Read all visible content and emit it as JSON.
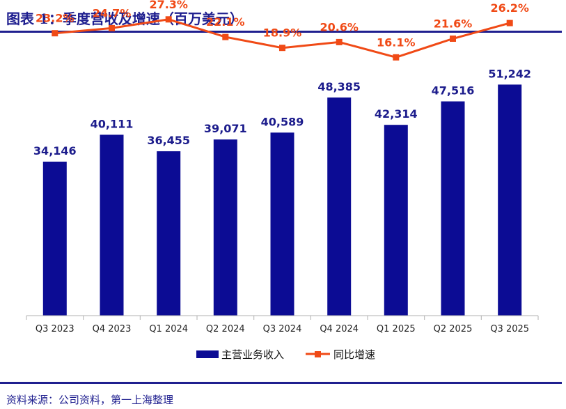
{
  "header": {
    "title": "图表 1：季度营收及增速（百万美元）"
  },
  "footer": {
    "source": "资料来源：公司资料，第一上海整理"
  },
  "colors": {
    "bar": "#0c0c94",
    "line": "#f04a16",
    "title": "#1f1f8f"
  },
  "chart_data": {
    "type": "bar",
    "categories": [
      "Q3 2023",
      "Q4 2023",
      "Q1 2024",
      "Q2 2024",
      "Q3 2024",
      "Q4 2024",
      "Q1 2025",
      "Q2 2025",
      "Q3 2025"
    ],
    "series": [
      {
        "name": "主营业务收入",
        "type": "bar",
        "values": [
          34146,
          40111,
          36455,
          39071,
          40589,
          48385,
          42314,
          47516,
          51242
        ],
        "labels": [
          "34,146",
          "40,111",
          "36,455",
          "39,071",
          "40,589",
          "48,385",
          "42,314",
          "47,516",
          "51,242"
        ]
      },
      {
        "name": "同比增速",
        "type": "line",
        "values": [
          23.2,
          24.7,
          27.3,
          22.1,
          18.9,
          20.6,
          16.1,
          21.6,
          26.2
        ],
        "labels": [
          "23.2%",
          "24.7%",
          "27.3%",
          "22.1%",
          "18.9%",
          "20.6%",
          "16.1%",
          "21.6%",
          "26.2%"
        ]
      }
    ],
    "ylim": [
      0,
      70000
    ],
    "y2lim": [
      -60,
      33
    ],
    "grid": false,
    "legend": "bottom"
  }
}
